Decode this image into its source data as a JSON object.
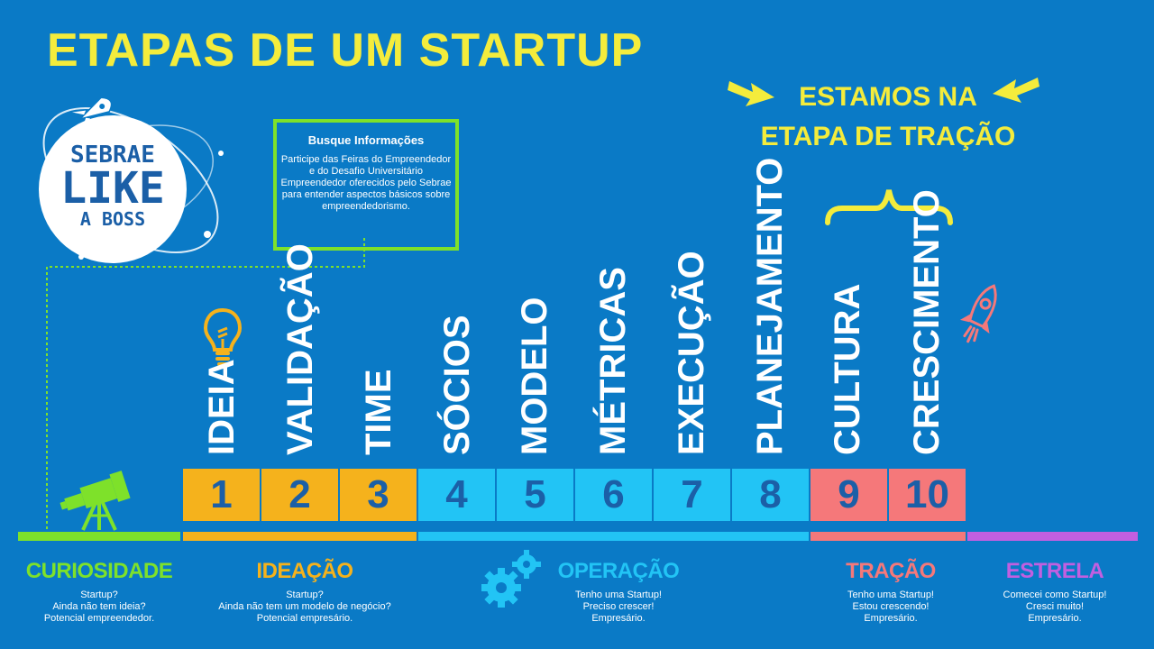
{
  "title": "ETAPAS DE UM STARTUP",
  "callout": {
    "line1": "ESTAMOS NA",
    "line2": "ETAPA DE TRAÇÃO"
  },
  "logo": {
    "line1": "SEBRAE",
    "line2": "LIKE",
    "line3": "A BOSS"
  },
  "info_box": {
    "heading": "Busque Informações",
    "body": "Participe das Feiras do Empreendedor e do Desafio Universitário Empreendedor oferecidos pelo Sebrae para entender aspectos básicos sobre empreendedorismo."
  },
  "stages": [
    {
      "number": "1",
      "label": "IDEIA"
    },
    {
      "number": "2",
      "label": "VALIDAÇÃO"
    },
    {
      "number": "3",
      "label": "TIME"
    },
    {
      "number": "4",
      "label": "SÓCIOS"
    },
    {
      "number": "5",
      "label": "MODELO"
    },
    {
      "number": "6",
      "label": "MÉTRICAS"
    },
    {
      "number": "7",
      "label": "EXECUÇÃO"
    },
    {
      "number": "8",
      "label": "PLANEJAMENTO"
    },
    {
      "number": "9",
      "label": "CULTURA"
    },
    {
      "number": "10",
      "label": "CRESCIMENTO"
    }
  ],
  "phases": [
    {
      "name": "CURIOSIDADE",
      "color": "#7ee12a",
      "lines": [
        "Startup?",
        "Ainda não tem ideia?",
        "Potencial empreendedor."
      ]
    },
    {
      "name": "IDEAÇÃO",
      "color": "#f5b21c",
      "lines": [
        "Startup?",
        "Ainda não tem um modelo de negócio?",
        "Potencial empresário."
      ]
    },
    {
      "name": "OPERAÇÃO",
      "color": "#22c4f5",
      "lines": [
        "Tenho uma Startup!",
        "Preciso crescer!",
        "Empresário."
      ]
    },
    {
      "name": "TRAÇÃO",
      "color": "#f5787a",
      "lines": [
        "Tenho uma Startup!",
        "Estou crescendo!",
        "Empresário."
      ]
    },
    {
      "name": "ESTRELA",
      "color": "#c25fe0",
      "lines": [
        "Comecei como Startup!",
        "Cresci muito!",
        "Empresário."
      ]
    }
  ],
  "colors": {
    "background": "#0a7ac6",
    "title": "#f4ec3c",
    "ideacao": "#f5b21c",
    "operacao": "#22c4f5",
    "tracao": "#f5787a",
    "curiosidade": "#7ee12a",
    "estrela": "#c25fe0"
  },
  "icons": [
    "rocket-icon",
    "lightbulb-icon",
    "telescope-icon",
    "gears-icon",
    "rocket-pink-icon",
    "arrow-right-icon",
    "arrow-left-icon",
    "brace-icon"
  ]
}
